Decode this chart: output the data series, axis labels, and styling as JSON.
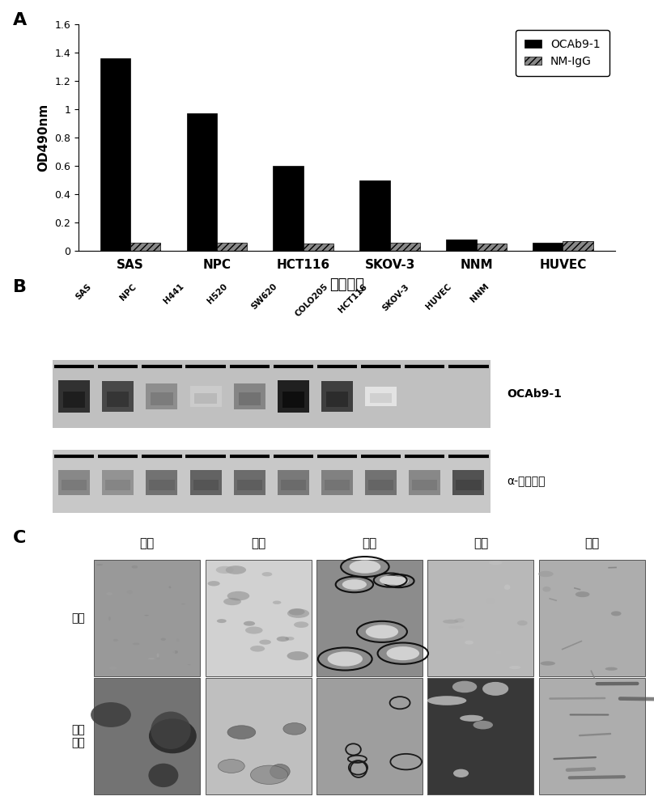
{
  "panel_A": {
    "categories": [
      "SAS",
      "NPC",
      "HCT116",
      "SKOV-3",
      "NNM",
      "HUVEC"
    ],
    "OCAb9_1": [
      1.36,
      0.97,
      0.6,
      0.5,
      0.08,
      0.06
    ],
    "NM_IgG": [
      0.06,
      0.06,
      0.05,
      0.06,
      0.05,
      0.07
    ],
    "ylabel": "OD490nm",
    "xlabel": "癌细胞株",
    "ylim": [
      0,
      1.6
    ],
    "yticks": [
      0,
      0.2,
      0.4,
      0.6,
      0.8,
      1.0,
      1.2,
      1.4,
      1.6
    ],
    "legend_labels": [
      "OCAb9-1",
      "NM-IgG"
    ],
    "bar_color_black": "#000000",
    "bar_color_gray": "#888888"
  },
  "panel_B": {
    "lane_labels": [
      "SAS",
      "NPC",
      "H441",
      "H520",
      "SW620",
      "COLO205",
      "HCT116",
      "SKOV-3",
      "HUVEC",
      "NNM"
    ],
    "row1_label": "OCAb9-1",
    "row2_label": "α-微管蛋白",
    "band1_intensity": [
      0.88,
      0.78,
      0.48,
      0.22,
      0.52,
      0.95,
      0.82,
      0.12,
      0.0,
      0.0
    ],
    "band2_intensity": [
      0.55,
      0.5,
      0.65,
      0.72,
      0.68,
      0.62,
      0.58,
      0.65,
      0.55,
      0.8
    ]
  },
  "panel_C": {
    "col_labels": [
      "口腔",
      "乳房",
      "结肠",
      "卵巢",
      "子宫"
    ],
    "row_label_1": "正常",
    "row_label_2": "惶性\n肿瘷",
    "cell_gray": {
      "0_0": 0.6,
      "0_1": 0.82,
      "0_2": 0.55,
      "0_3": 0.72,
      "0_4": 0.68,
      "1_0": 0.45,
      "1_1": 0.75,
      "1_2": 0.62,
      "1_3": 0.38,
      "1_4": 0.68
    }
  },
  "bg_color": "#ffffff",
  "panel_label_fontsize": 16,
  "axis_fontsize": 11,
  "tick_fontsize": 9
}
